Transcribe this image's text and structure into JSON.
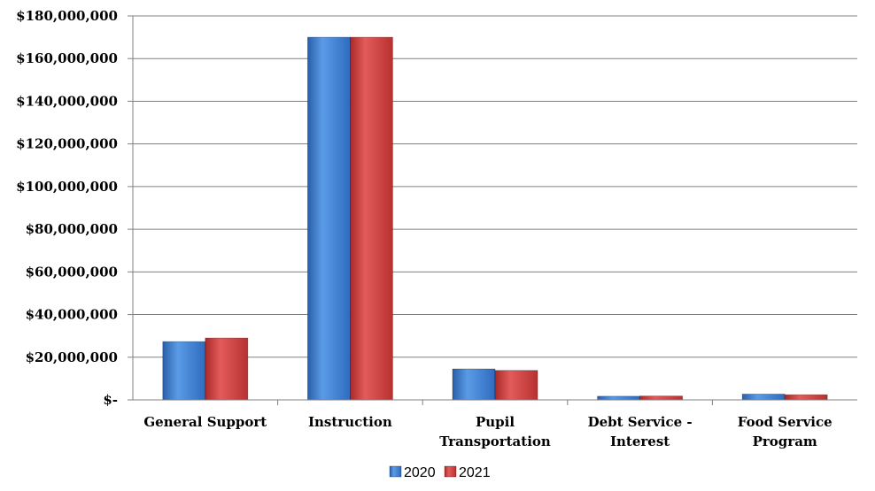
{
  "chart_data": {
    "type": "bar",
    "title": "",
    "xlabel": "",
    "ylabel": "",
    "categories": [
      [
        "General Support"
      ],
      [
        "Instruction"
      ],
      [
        "Pupil",
        "Transportation"
      ],
      [
        "Debt Service -",
        "Interest"
      ],
      [
        "Food Service",
        "Program"
      ]
    ],
    "series": [
      {
        "name": "2020",
        "color": "#3b78c9",
        "values": [
          27300000,
          170000000,
          14500000,
          1700000,
          2700000
        ]
      },
      {
        "name": "2021",
        "color": "#cc3b3b",
        "values": [
          29000000,
          170000000,
          13800000,
          1800000,
          2400000
        ]
      }
    ],
    "ylim": [
      0,
      180000000
    ],
    "yticks": [
      0,
      20000000,
      40000000,
      60000000,
      80000000,
      100000000,
      120000000,
      140000000,
      160000000,
      180000000
    ],
    "ytick_labels": [
      "$-",
      "$20,000,000",
      "$40,000,000",
      "$60,000,000",
      "$80,000,000",
      "$100,000,000",
      "$120,000,000",
      "$140,000,000",
      "$160,000,000",
      "$180,000,000"
    ],
    "grid": true,
    "legend_position": "bottom"
  }
}
